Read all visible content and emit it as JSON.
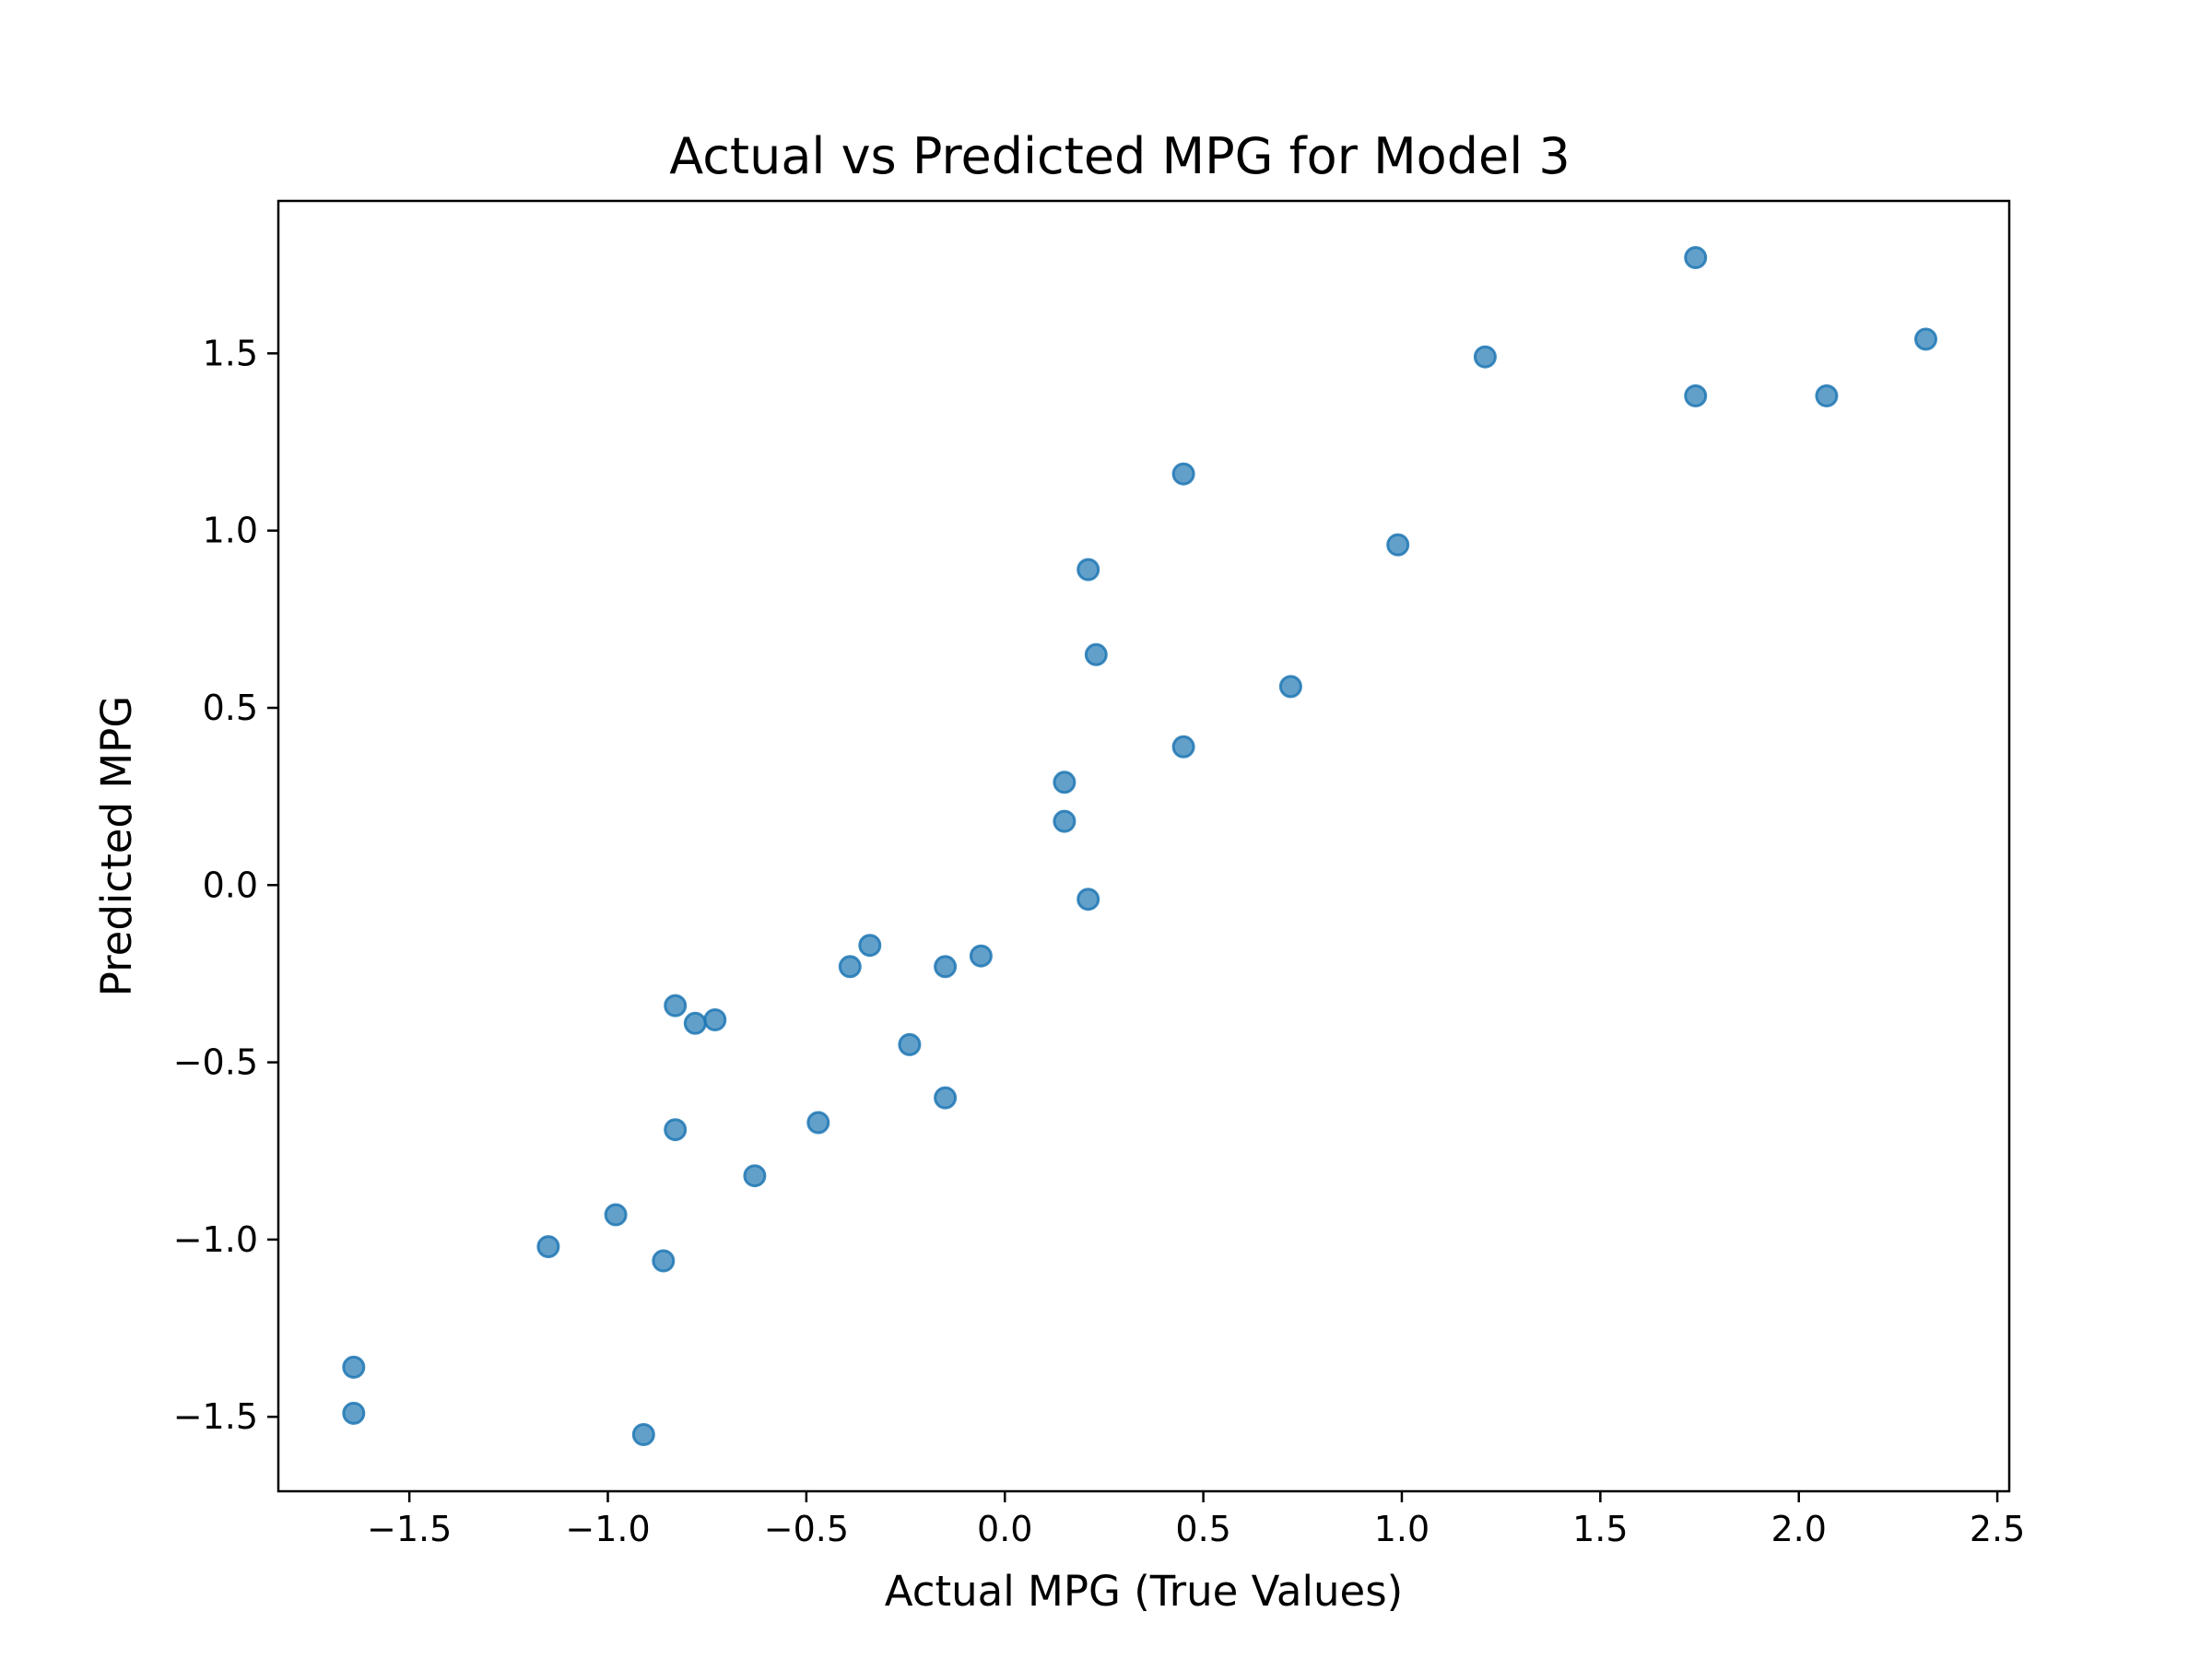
{
  "chart_data": {
    "type": "scatter",
    "title": "Actual vs Predicted MPG for Model 3",
    "xlabel": "Actual MPG (True Values)",
    "ylabel": "Predicted MPG",
    "xlim": [
      -1.83,
      2.53
    ],
    "ylim": [
      -1.71,
      1.93
    ],
    "xticks": [
      -1.5,
      -1.0,
      -0.5,
      0.0,
      0.5,
      1.0,
      1.5,
      2.0,
      2.5
    ],
    "yticks": [
      -1.5,
      -1.0,
      -0.5,
      0.0,
      0.5,
      1.0,
      1.5
    ],
    "xtick_labels": [
      "−1.5",
      "−1.0",
      "−0.5",
      "0.0",
      "0.5",
      "1.0",
      "1.5",
      "2.0",
      "2.5"
    ],
    "ytick_labels": [
      "−1.5",
      "−1.0",
      "−0.5",
      "0.0",
      "0.5",
      "1.0",
      "1.5"
    ],
    "grid": false,
    "color": "#1f77b4",
    "x": [
      1.74,
      1.21,
      2.32,
      1.74,
      2.07,
      0.45,
      0.99,
      0.21,
      0.23,
      0.72,
      0.45,
      0.15,
      0.15,
      0.21,
      -0.34,
      -0.39,
      -0.15,
      -0.06,
      -0.83,
      -0.78,
      -0.73,
      -0.24,
      -0.15,
      -0.47,
      -0.83,
      -0.63,
      -0.98,
      -1.15,
      -0.86,
      -1.64,
      -1.64,
      -0.91
    ],
    "y": [
      1.77,
      1.49,
      1.54,
      1.38,
      1.38,
      1.16,
      0.96,
      0.89,
      0.65,
      0.56,
      0.39,
      0.29,
      0.18,
      -0.04,
      -0.17,
      -0.23,
      -0.23,
      -0.2,
      -0.34,
      -0.39,
      -0.38,
      -0.45,
      -0.6,
      -0.67,
      -0.69,
      -0.82,
      -0.93,
      -1.02,
      -1.06,
      -1.36,
      -1.49,
      -1.55
    ]
  }
}
